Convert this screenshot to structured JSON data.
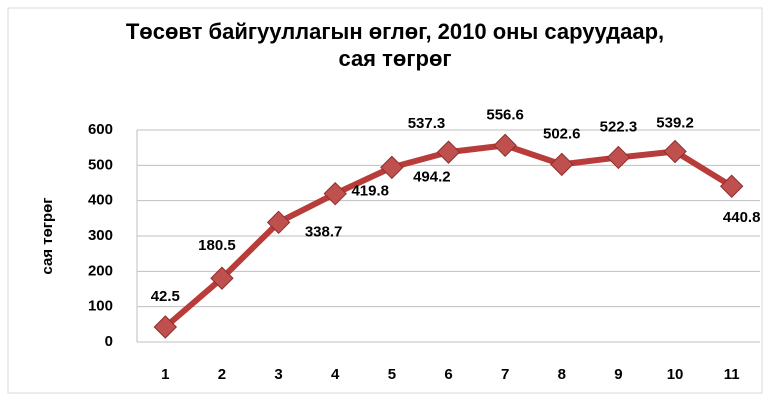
{
  "chart_data": {
    "type": "line",
    "title": "Төсөвт байгууллагын өглөг, 2010 оны саруудаар, сая төгрөг",
    "y_label": "сая төгрөг",
    "categories": [
      "1",
      "2",
      "3",
      "4",
      "5",
      "6",
      "7",
      "8",
      "9",
      "10",
      "11"
    ],
    "values": [
      42.5,
      180.5,
      338.7,
      419.8,
      494.2,
      537.3,
      556.6,
      502.6,
      522.3,
      539.2,
      440.8
    ],
    "color": "#b83c3a",
    "ylim": [
      0,
      600
    ],
    "yticks": [
      0,
      100,
      200,
      300,
      400,
      500,
      600
    ],
    "grid": true
  }
}
